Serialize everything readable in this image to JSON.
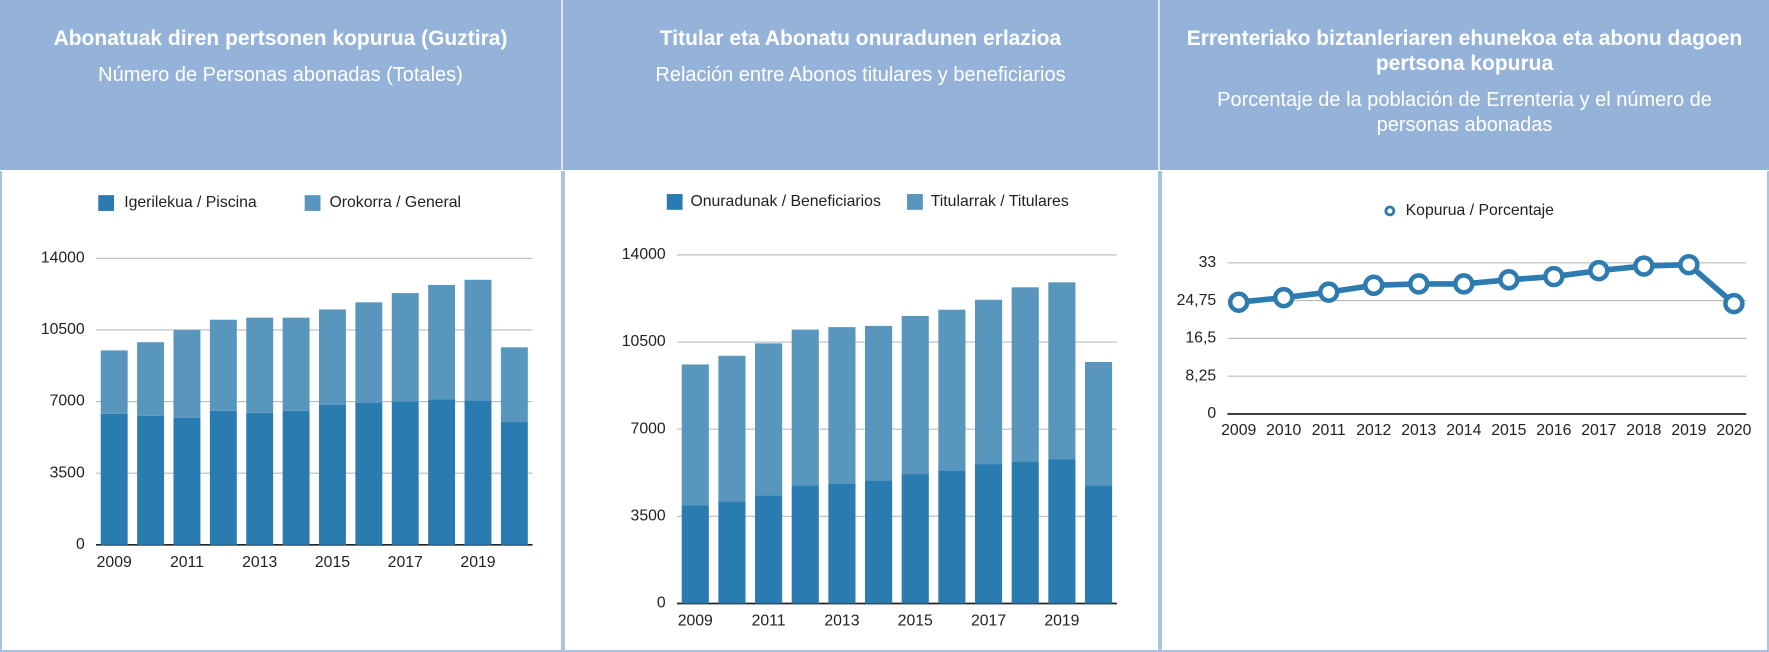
{
  "chart_data": [
    {
      "type": "bar",
      "stacked": true,
      "title": "Abonatuak diren pertsonen kopurua (Guztira)",
      "subtitle": "Número de Personas abonadas (Totales)",
      "categories": [
        "2009",
        null,
        "2011",
        null,
        "2013",
        null,
        "2015",
        null,
        "2017",
        null,
        "2019",
        null
      ],
      "series": [
        {
          "name": "Igerilekua / Piscina",
          "color": "#2a7bb0",
          "values": [
            6400,
            6300,
            6200,
            6550,
            6450,
            6550,
            6850,
            6950,
            7000,
            7100,
            7050,
            6000
          ]
        },
        {
          "name": "Orokorra / General",
          "color": "#5896bd",
          "values": [
            3100,
            3600,
            4300,
            4450,
            4650,
            4550,
            4650,
            4900,
            5300,
            5600,
            5900,
            3650
          ]
        }
      ],
      "ylim": [
        0,
        14000
      ],
      "yticks": [
        0,
        3500,
        7000,
        10500,
        14000
      ],
      "grid": true,
      "legend": "top"
    },
    {
      "type": "bar",
      "stacked": true,
      "title": "Titular eta Abonatu onuradunen erlazioa",
      "subtitle": "Relación entre Abonos titulares y beneficiarios",
      "categories": [
        "2009",
        null,
        "2011",
        null,
        "2013",
        null,
        "2015",
        null,
        "2017",
        null,
        "2019",
        null
      ],
      "series": [
        {
          "name": "Onuradunak / Beneficiarios",
          "color": "#2a7bb0",
          "values": [
            3950,
            4100,
            4350,
            4750,
            4800,
            4950,
            5200,
            5350,
            5600,
            5700,
            5800,
            4750
          ]
        },
        {
          "name": "Titularrak / Titulares",
          "color": "#5896bd",
          "values": [
            5650,
            5850,
            6100,
            6250,
            6300,
            6200,
            6350,
            6450,
            6600,
            7000,
            7100,
            4950
          ]
        }
      ],
      "ylim": [
        0,
        14000
      ],
      "yticks": [
        0,
        3500,
        7000,
        10500,
        14000
      ],
      "grid": true,
      "legend": "top"
    },
    {
      "type": "line",
      "title": "Errenteriako biztanleriaren ehunekoa eta abonu dagoen pertsona kopurua",
      "subtitle": "Porcentaje de la población de Errenteria y el número de personas abonadas",
      "categories": [
        "2009",
        "2010",
        "2011",
        "2012",
        "2013",
        "2014",
        "2015",
        "2016",
        "2017",
        "2018",
        "2019",
        "2020"
      ],
      "series": [
        {
          "name": "Kopurua / Porcentaje",
          "color": "#2d7bb0",
          "values": [
            24.4,
            25.4,
            26.6,
            28.1,
            28.4,
            28.4,
            29.3,
            30.0,
            31.3,
            32.3,
            32.6,
            24.1
          ]
        }
      ],
      "ylim": [
        0,
        33
      ],
      "yticks": [
        0,
        {
          "value": 8.25,
          "label": "8,25"
        },
        {
          "value": 16.5,
          "label": "16,5"
        },
        {
          "value": 24.75,
          "label": "24,75"
        },
        33
      ],
      "grid": true,
      "legend": "top"
    }
  ]
}
